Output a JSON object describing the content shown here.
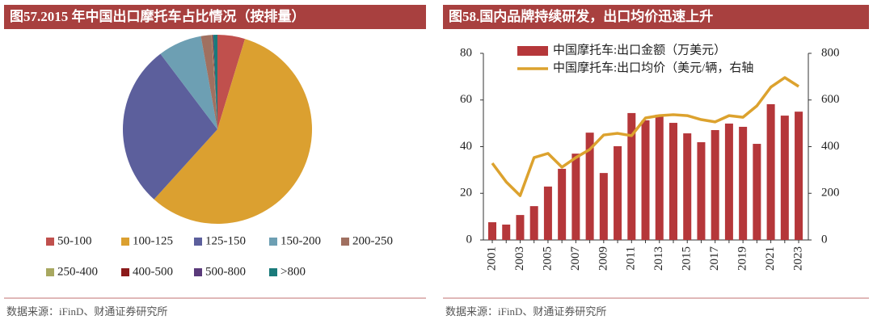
{
  "chart_data": [
    {
      "type": "pie",
      "title": "图57.2015 年中国出口摩托车占比情况（按排量）",
      "categories": [
        "50-100",
        "100-125",
        "125-150",
        "150-200",
        "200-250",
        "250-400",
        "400-500",
        "500-800",
        ">800"
      ],
      "values": [
        4.7,
        57.0,
        28.0,
        7.5,
        1.8,
        0.1,
        0.1,
        0.1,
        0.7
      ],
      "colors": [
        "#c0504d",
        "#dba030",
        "#5c5f9c",
        "#6d9fb3",
        "#a07060",
        "#a8a860",
        "#8b1a1a",
        "#5a3a7a",
        "#1a7a7a"
      ],
      "source": "数据来源：iFinD、财通证券研究所"
    },
    {
      "type": "bar",
      "title": "图58.国内品牌持续研发，出口均价迅速上升",
      "x": [
        "2001",
        null,
        "2003",
        null,
        "2005",
        null,
        "2007",
        null,
        "2009",
        null,
        "2011",
        null,
        "2013",
        null,
        "2015",
        null,
        "2017",
        null,
        "2019",
        null,
        "2021",
        null,
        "2023"
      ],
      "series": [
        {
          "name": "中国摩托车:出口金额（万美元）",
          "type": "bar",
          "color": "#b5373a",
          "values": [
            7.6,
            6.6,
            10.7,
            14.5,
            22.9,
            30.5,
            37,
            46,
            28.7,
            40.2,
            54.4,
            51.3,
            53.7,
            50.2,
            45.7,
            41.9,
            47.1,
            49.9,
            48.5,
            41.2,
            58.2,
            53.3,
            55
          ]
        },
        {
          "name": "中国摩托车:出口均价（美元/辆，右轴",
          "type": "line",
          "axis": "y2",
          "color": "#dca22e",
          "values": [
            329,
            249,
            190,
            353,
            371,
            312,
            353,
            388,
            450,
            457,
            447,
            523,
            533,
            537,
            533,
            516,
            506,
            533,
            526,
            575,
            655,
            696,
            658
          ]
        }
      ],
      "ylim": [
        0,
        80
      ],
      "yticks": [
        0,
        20,
        40,
        60,
        80
      ],
      "y2lim": [
        0,
        800
      ],
      "y2ticks": [
        0,
        200,
        400,
        600,
        800
      ],
      "source": "数据来源：iFinD、财通证券研究所"
    }
  ]
}
